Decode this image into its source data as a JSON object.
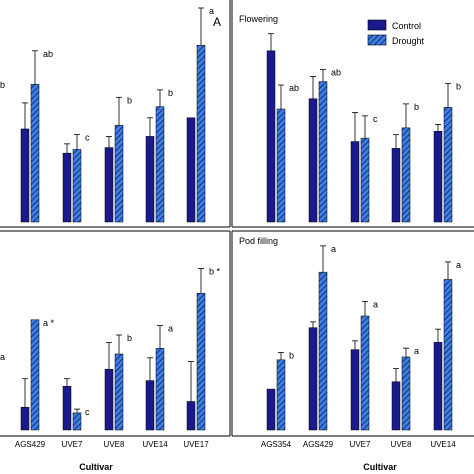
{
  "colors": {
    "control": "#1a1a8c",
    "drought": "#3d7fe0",
    "drought_hatch": "#0d1a66"
  },
  "legend": {
    "control": "Control",
    "drought": "Drought"
  },
  "chart_data": [
    {
      "type": "bar",
      "panel_letter": "A",
      "title": "",
      "xlabel": "",
      "ylabel": "",
      "categories": [
        "",
        "",
        "UVE7",
        "UVE8",
        "UVE14",
        "UVE17"
      ],
      "category_labels_visible": false,
      "series": [
        {
          "name": "Control",
          "values": [
            null,
            50,
            37,
            40,
            46,
            56
          ],
          "errors": [
            null,
            14,
            5,
            6,
            10,
            0
          ]
        },
        {
          "name": "Drought",
          "values": [
            null,
            74,
            39,
            52,
            62,
            95
          ],
          "errors": [
            null,
            18,
            8,
            15,
            9,
            20
          ]
        }
      ],
      "sig_labels": [
        "b",
        "ab",
        "c",
        "b",
        "b",
        "a"
      ],
      "ylim": [
        0,
        115
      ]
    },
    {
      "type": "bar",
      "title": "Flowering",
      "xlabel": "",
      "ylabel": "",
      "categories": [
        "AGS354",
        "AGS429",
        "UVE7",
        "UVE8",
        "UVE14"
      ],
      "category_labels_visible": false,
      "series": [
        {
          "name": "Control",
          "values": [
            100,
            72,
            47,
            43,
            53
          ],
          "errors": [
            10,
            13,
            17,
            8,
            4
          ]
        },
        {
          "name": "Drought",
          "values": [
            66,
            82,
            49,
            55,
            67
          ],
          "errors": [
            14,
            7,
            13,
            14,
            14
          ]
        }
      ],
      "sig_labels": [
        "ab",
        "ab",
        "c",
        "b",
        "b"
      ],
      "ylim": [
        0,
        125
      ]
    },
    {
      "type": "bar",
      "title": "",
      "xlabel": "Cultivar",
      "ylabel": "",
      "categories": [
        "",
        "AGS429",
        "UVE7",
        "UVE8",
        "UVE14",
        "UVE17"
      ],
      "series": [
        {
          "name": "Control",
          "values": [
            null,
            12,
            23,
            32,
            26,
            15
          ],
          "errors": [
            null,
            15,
            4,
            14,
            12,
            21
          ]
        },
        {
          "name": "Drought",
          "values": [
            null,
            58,
            9,
            40,
            43,
            72
          ],
          "errors": [
            null,
            0,
            2,
            10,
            12,
            13
          ]
        }
      ],
      "sig_labels": [
        "a",
        "a *",
        "c",
        "b",
        "a",
        "b *"
      ],
      "ylim": [
        0,
        100
      ]
    },
    {
      "type": "bar",
      "title": "Pod filling",
      "xlabel": "Cultivar",
      "ylabel": "",
      "categories": [
        "AGS354",
        "AGS429",
        "UVE7",
        "UVE8",
        "UVE14"
      ],
      "series": [
        {
          "name": "Control",
          "values": [
            28,
            70,
            55,
            33,
            60
          ],
          "errors": [
            0,
            4,
            6,
            9,
            9
          ]
        },
        {
          "name": "Drought",
          "values": [
            48,
            108,
            78,
            50,
            103
          ],
          "errors": [
            5,
            18,
            10,
            6,
            12
          ]
        }
      ],
      "sig_labels": [
        "b",
        "a",
        "a",
        "a",
        "a"
      ],
      "ylim": [
        0,
        130
      ]
    }
  ]
}
